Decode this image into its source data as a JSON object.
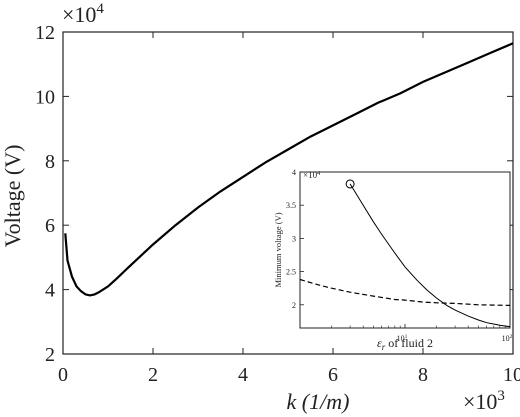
{
  "chart_data": [
    {
      "type": "line",
      "xlabel": "k (1/m)",
      "ylabel": "Voltage (V)",
      "x_multiplier": "×10",
      "x_multiplier_exp": "3",
      "y_multiplier": "×10",
      "y_multiplier_exp": "4",
      "xlim": [
        0,
        10
      ],
      "ylim": [
        2,
        12
      ],
      "xticks": [
        "0",
        "2",
        "4",
        "6",
        "8",
        "10"
      ],
      "yticks": [
        "2",
        "4",
        "6",
        "8",
        "10",
        "12"
      ],
      "grid": false,
      "series": [
        {
          "x": [
            0.05,
            0.1,
            0.2,
            0.3,
            0.4,
            0.5,
            0.6,
            0.7,
            0.8,
            1.0,
            1.2,
            1.5,
            2.0,
            2.5,
            3.0,
            3.5,
            4.0,
            4.5,
            5.0,
            5.5,
            6.0,
            6.5,
            7.0,
            7.5,
            8.0,
            8.5,
            9.0,
            9.5,
            10.0
          ],
          "y": [
            5.75,
            4.9,
            4.4,
            4.1,
            3.95,
            3.85,
            3.82,
            3.85,
            3.92,
            4.1,
            4.35,
            4.75,
            5.4,
            6.0,
            6.55,
            7.05,
            7.5,
            7.95,
            8.35,
            8.75,
            9.1,
            9.45,
            9.8,
            10.1,
            10.45,
            10.75,
            11.05,
            11.35,
            11.65
          ]
        }
      ]
    },
    {
      "type": "line",
      "xlabel_symbol": "ε",
      "xlabel_sub": "r",
      "xlabel_rest": " of fluid 2",
      "ylabel": "Minimum voltage (V)",
      "y_multiplier": "×10",
      "y_multiplier_exp": "4",
      "xscale": "log",
      "xlim": [
        1,
        100
      ],
      "ylim": [
        1.65,
        4
      ],
      "xticks": [
        "10",
        "10"
      ],
      "xtick_exps": [
        "1",
        "2"
      ],
      "yticks": [
        "2",
        "2.5",
        "3",
        "3.5",
        "4"
      ],
      "grid": false,
      "series": [
        {
          "style": "solid",
          "x": [
            3,
            4,
            5,
            6,
            8,
            10,
            13,
            16,
            20,
            25,
            30,
            40,
            50,
            60,
            70,
            80,
            100
          ],
          "y": [
            3.82,
            3.5,
            3.25,
            3.06,
            2.78,
            2.57,
            2.37,
            2.23,
            2.1,
            1.99,
            1.92,
            1.83,
            1.77,
            1.73,
            1.71,
            1.69,
            1.67
          ]
        },
        {
          "style": "dashed",
          "x": [
            1,
            1.5,
            2,
            3,
            5,
            8,
            10,
            15,
            20,
            30,
            50,
            100
          ],
          "y": [
            2.38,
            2.3,
            2.25,
            2.19,
            2.13,
            2.08,
            2.07,
            2.04,
            2.03,
            2.02,
            2.0,
            1.99
          ]
        }
      ],
      "marker": {
        "x": 3,
        "y": 3.82,
        "shape": "open-circle"
      }
    }
  ]
}
